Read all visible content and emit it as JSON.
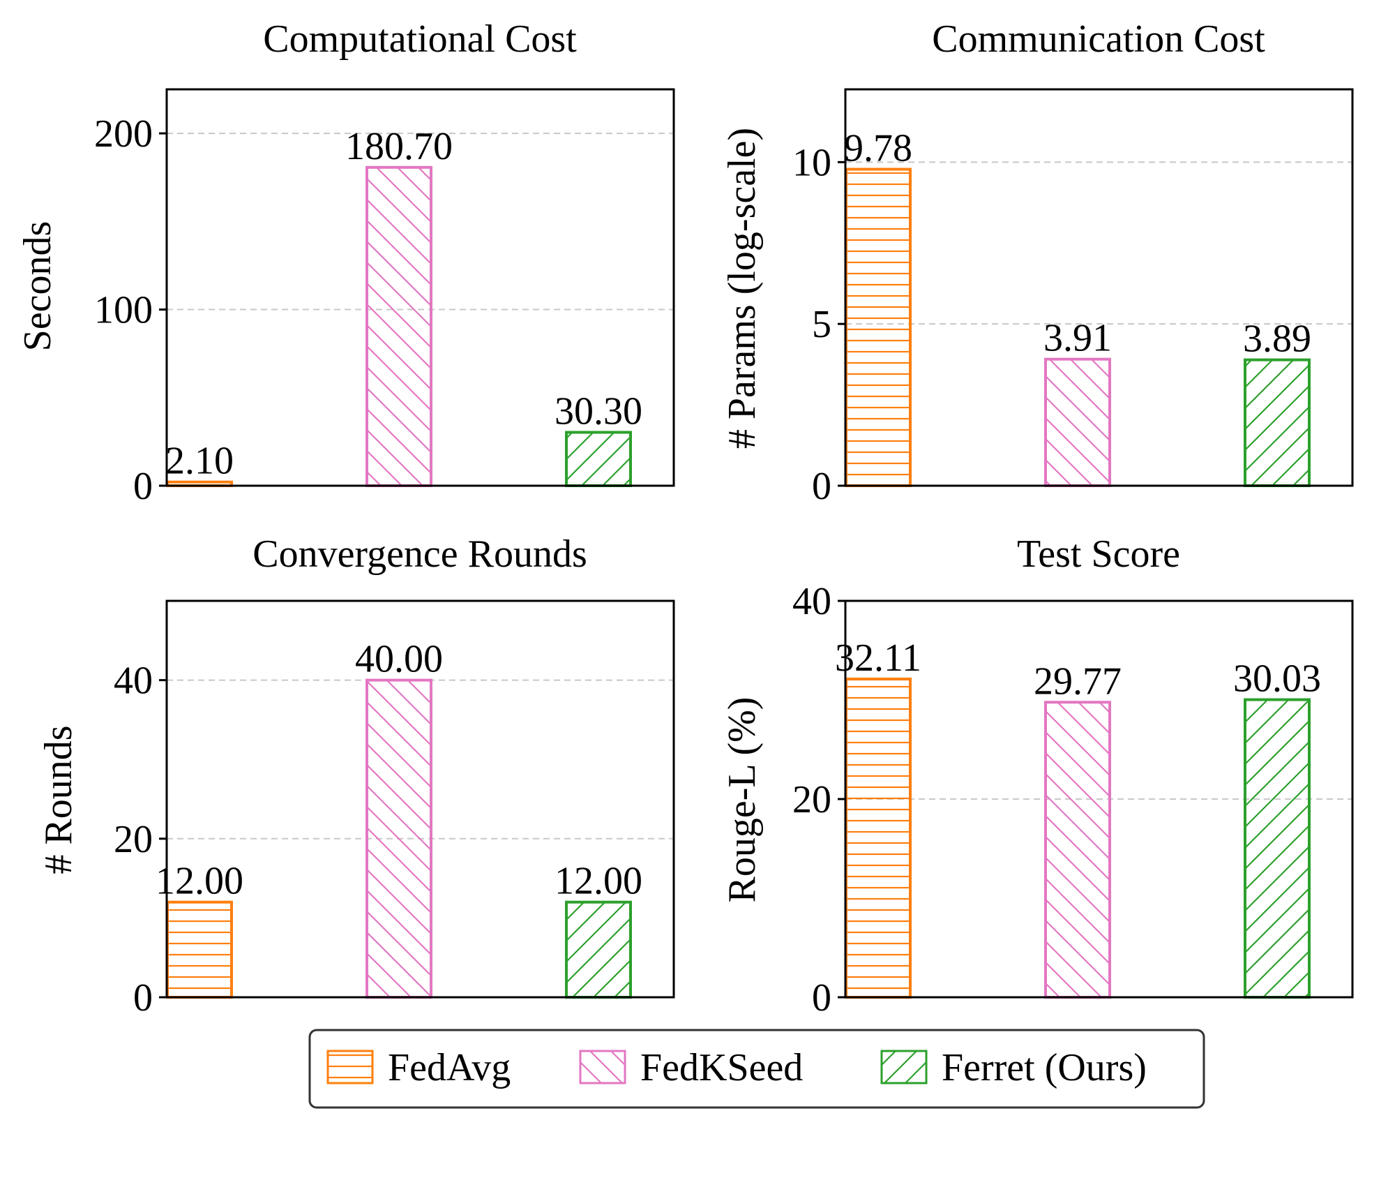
{
  "colors": {
    "FedAvg": "#ff7f0e",
    "FedKSeed": "#e377c2",
    "Ferret (Ours)": "#2ca02c",
    "grid": "#c8c8c8",
    "axis": "#000000"
  },
  "legend": {
    "position": "bottom-center",
    "items": [
      {
        "label": "FedAvg",
        "hatch": "horizontal"
      },
      {
        "label": "FedKSeed",
        "hatch": "backslash"
      },
      {
        "label": "Ferret (Ours)",
        "hatch": "forwardslash"
      }
    ]
  },
  "chart_data": [
    {
      "type": "bar",
      "title": "Computational Cost",
      "ylabel": "Seconds",
      "xlabel": "",
      "categories": [
        "FedAvg",
        "FedKSeed",
        "Ferret (Ours)"
      ],
      "values": [
        2.1,
        180.7,
        30.3
      ],
      "value_labels": [
        "2.10",
        "180.70",
        "30.30"
      ],
      "ylim": [
        0,
        225
      ],
      "yticks": [
        0,
        100,
        200
      ],
      "ytick_labels": [
        "0",
        "100",
        "200"
      ],
      "grid": true
    },
    {
      "type": "bar",
      "title": "Communication Cost",
      "ylabel": "# Params (log-scale)",
      "xlabel": "",
      "categories": [
        "FedAvg",
        "FedKSeed",
        "Ferret (Ours)"
      ],
      "values": [
        9.78,
        3.91,
        3.89
      ],
      "value_labels": [
        "9.78",
        "3.91",
        "3.89"
      ],
      "ylim": [
        0,
        12.25
      ],
      "yticks": [
        0,
        5,
        10
      ],
      "ytick_labels": [
        "0",
        "5",
        "10"
      ],
      "grid": true
    },
    {
      "type": "bar",
      "title": "Convergence Rounds",
      "ylabel": "# Rounds",
      "xlabel": "",
      "categories": [
        "FedAvg",
        "FedKSeed",
        "Ferret (Ours)"
      ],
      "values": [
        12.0,
        40.0,
        12.0
      ],
      "value_labels": [
        "12.00",
        "40.00",
        "12.00"
      ],
      "ylim": [
        0,
        50
      ],
      "yticks": [
        0,
        20,
        40
      ],
      "ytick_labels": [
        "0",
        "20",
        "40"
      ],
      "grid": true
    },
    {
      "type": "bar",
      "title": "Test Score",
      "ylabel": "Rouge-L (%)",
      "xlabel": "",
      "categories": [
        "FedAvg",
        "FedKSeed",
        "Ferret (Ours)"
      ],
      "values": [
        32.11,
        29.77,
        30.03
      ],
      "value_labels": [
        "32.11",
        "29.77",
        "30.03"
      ],
      "ylim": [
        0,
        40
      ],
      "yticks": [
        0,
        20,
        40
      ],
      "ytick_labels": [
        "0",
        "20",
        "40"
      ],
      "grid": true
    }
  ]
}
